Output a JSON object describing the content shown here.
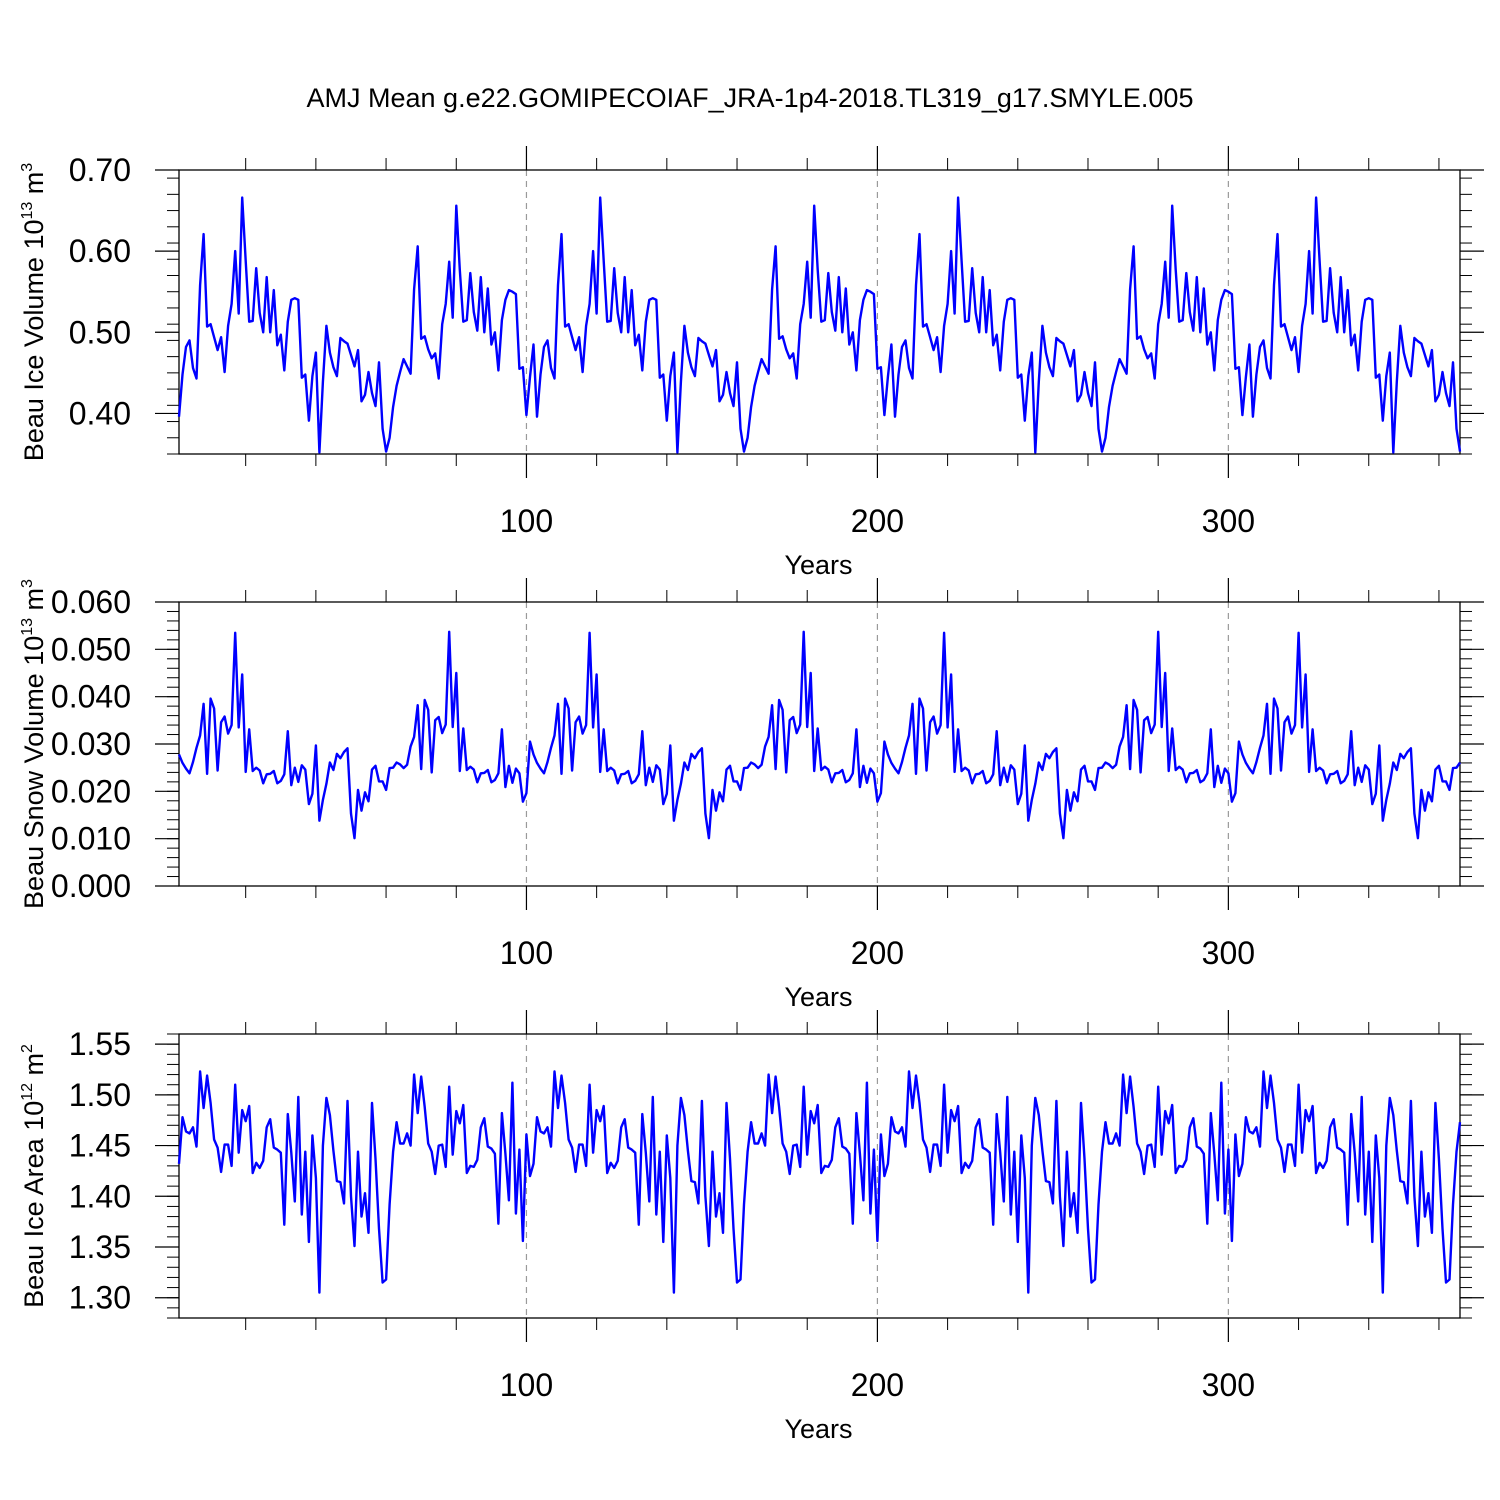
{
  "figure": {
    "title": "AMJ Mean g.e22.GOMIPECOIAF_JRA-1p4-2018.TL319_g17.SMYLE.005"
  },
  "chart_data": [
    {
      "type": "line",
      "id": "ice-volume",
      "title": "",
      "xlabel": "Years",
      "ylabel": {
        "base": "Beau Ice Volume 10",
        "exp": "13",
        "unit": " m",
        "unit_exp": "3"
      },
      "xlim": [
        1,
        366
      ],
      "ylim": [
        0.35,
        0.7
      ],
      "xticks": [
        100,
        200,
        300
      ],
      "xtick_labels": [
        "100",
        "200",
        "300"
      ],
      "yticks": [
        0.4,
        0.5,
        0.6,
        0.7
      ],
      "ytick_labels": [
        "0.40",
        "0.50",
        "0.60",
        "0.70"
      ],
      "yminor_step": 0.02,
      "xminor_step": 20,
      "vlines": [
        100,
        200,
        300
      ],
      "color": "#0000ff",
      "pattern": [
        0.396,
        0.448,
        0.482,
        0.49,
        0.456,
        0.443,
        0.558,
        0.621,
        0.507,
        0.51,
        0.494,
        0.478,
        0.494,
        0.451,
        0.508,
        0.535,
        0.6,
        0.523,
        0.666,
        0.588,
        0.513,
        0.514,
        0.579,
        0.524,
        0.5,
        0.568,
        0.5,
        0.552,
        0.484,
        0.497,
        0.453,
        0.513,
        0.54,
        0.542,
        0.54,
        0.444,
        0.448,
        0.391,
        0.446,
        0.475,
        0.352,
        0.439,
        0.508,
        0.475,
        0.457,
        0.446,
        0.493,
        0.489,
        0.486,
        0.472,
        0.458,
        0.478,
        0.415,
        0.423,
        0.451,
        0.425,
        0.409,
        0.463,
        0.381,
        0.353,
        0.37,
        0.408,
        0.434,
        0.451,
        0.467,
        0.458,
        0.449,
        0.553,
        0.606,
        0.492,
        0.495,
        0.479,
        0.468,
        0.474,
        0.443,
        0.51,
        0.535,
        0.587,
        0.518,
        0.656,
        0.577,
        0.513,
        0.515,
        0.573,
        0.525,
        0.502,
        0.568,
        0.5,
        0.554,
        0.485,
        0.5,
        0.453,
        0.515,
        0.54,
        0.552,
        0.55,
        0.547,
        0.455,
        0.457,
        0.398,
        0.445,
        0.485
      ]
    },
    {
      "type": "line",
      "id": "snow-volume",
      "title": "",
      "xlabel": "Years",
      "ylabel": {
        "base": "Beau Snow Volume 10",
        "exp": "13",
        "unit": " m",
        "unit_exp": "3"
      },
      "xlim": [
        1,
        366
      ],
      "ylim": [
        0.0,
        0.06
      ],
      "xticks": [
        100,
        200,
        300
      ],
      "xtick_labels": [
        "100",
        "200",
        "300"
      ],
      "yticks": [
        0.0,
        0.01,
        0.02,
        0.03,
        0.04,
        0.05,
        0.06
      ],
      "ytick_labels": [
        "0.000",
        "0.010",
        "0.020",
        "0.030",
        "0.040",
        "0.050",
        "0.060"
      ],
      "yminor_step": 0.002,
      "xminor_step": 20,
      "vlines": [
        100,
        200,
        300
      ],
      "color": "#0000ff",
      "pattern": [
        0.0278,
        0.026,
        0.0248,
        0.0238,
        0.0262,
        0.0292,
        0.0318,
        0.0385,
        0.0237,
        0.0396,
        0.0375,
        0.0244,
        0.0346,
        0.0358,
        0.0322,
        0.034,
        0.0535,
        0.0335,
        0.0447,
        0.0241,
        0.0331,
        0.0243,
        0.025,
        0.0244,
        0.0217,
        0.0236,
        0.0237,
        0.0243,
        0.0217,
        0.0222,
        0.0236,
        0.0327,
        0.0213,
        0.025,
        0.022,
        0.0255,
        0.0246,
        0.0173,
        0.0195,
        0.0297,
        0.0138,
        0.0182,
        0.0216,
        0.0261,
        0.0245,
        0.0279,
        0.027,
        0.0283,
        0.0291,
        0.0153,
        0.0101,
        0.0203,
        0.0159,
        0.0198,
        0.0179,
        0.0246,
        0.0254,
        0.0221,
        0.0221,
        0.0203,
        0.0249,
        0.025,
        0.0261,
        0.0257,
        0.0249,
        0.0256,
        0.0295,
        0.0315,
        0.0382,
        0.0247,
        0.0393,
        0.0372,
        0.024,
        0.035,
        0.0357,
        0.0323,
        0.0341,
        0.0537,
        0.0336,
        0.045,
        0.0243,
        0.0333,
        0.0245,
        0.0252,
        0.0246,
        0.0219,
        0.0238,
        0.0239,
        0.0245,
        0.0219,
        0.0224,
        0.0238,
        0.0331,
        0.0209,
        0.0254,
        0.0218,
        0.0248,
        0.0238,
        0.0178,
        0.0196,
        0.0305
      ]
    },
    {
      "type": "line",
      "id": "ice-area",
      "title": "",
      "xlabel": "Years",
      "ylabel": {
        "base": "Beau Ice Area 10",
        "exp": "12",
        "unit": " m",
        "unit_exp": "2"
      },
      "xlim": [
        1,
        366
      ],
      "ylim": [
        1.28,
        1.56
      ],
      "xticks": [
        100,
        200,
        300
      ],
      "xtick_labels": [
        "100",
        "200",
        "300"
      ],
      "yticks": [
        1.3,
        1.35,
        1.4,
        1.45,
        1.5,
        1.55
      ],
      "ytick_labels": [
        "1.30",
        "1.35",
        "1.40",
        "1.45",
        "1.50",
        "1.55"
      ],
      "yminor_step": 0.01,
      "xminor_step": 20,
      "vlines": [
        100,
        200,
        300
      ],
      "color": "#0000ff",
      "pattern": [
        1.432,
        1.478,
        1.464,
        1.462,
        1.468,
        1.449,
        1.523,
        1.487,
        1.519,
        1.492,
        1.456,
        1.448,
        1.424,
        1.451,
        1.451,
        1.43,
        1.51,
        1.443,
        1.485,
        1.474,
        1.489,
        1.423,
        1.433,
        1.428,
        1.435,
        1.468,
        1.476,
        1.448,
        1.446,
        1.443,
        1.372,
        1.481,
        1.443,
        1.395,
        1.498,
        1.382,
        1.444,
        1.355,
        1.46,
        1.418,
        1.305,
        1.45,
        1.497,
        1.48,
        1.445,
        1.415,
        1.414,
        1.393,
        1.494,
        1.4,
        1.351,
        1.444,
        1.38,
        1.403,
        1.364,
        1.492,
        1.437,
        1.368,
        1.315,
        1.318,
        1.392,
        1.444,
        1.473,
        1.452,
        1.452,
        1.462,
        1.45,
        1.52,
        1.482,
        1.518,
        1.488,
        1.452,
        1.444,
        1.422,
        1.45,
        1.451,
        1.429,
        1.508,
        1.441,
        1.484,
        1.472,
        1.49,
        1.423,
        1.43,
        1.429,
        1.436,
        1.468,
        1.477,
        1.449,
        1.447,
        1.442,
        1.373,
        1.482,
        1.442,
        1.396,
        1.512,
        1.383,
        1.446,
        1.356,
        1.461,
        1.42
      ]
    }
  ]
}
